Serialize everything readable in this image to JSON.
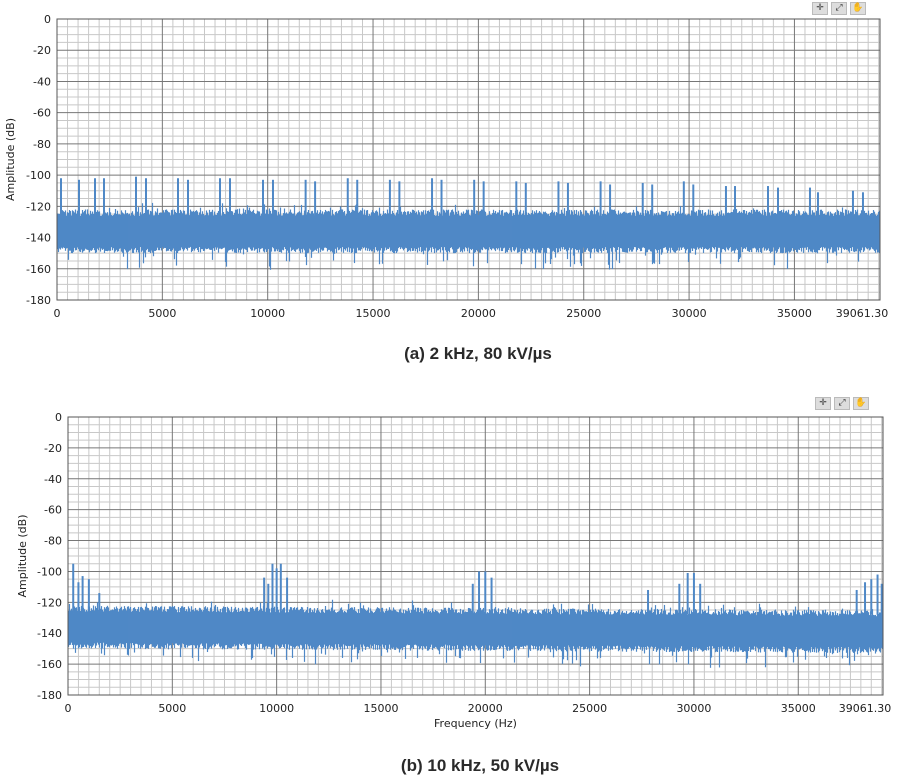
{
  "chart_data": [
    {
      "type": "line",
      "title": "",
      "caption": "(a) 2 kHz, 80 kV/µs",
      "xlabel": "",
      "ylabel": "Amplitude (dB)",
      "xlim": [
        0,
        39061.3
      ],
      "ylim": [
        -180,
        0
      ],
      "x_ticks": [
        "0",
        "5000",
        "10000",
        "15000",
        "20000",
        "25000",
        "30000",
        "35000",
        "39061.30"
      ],
      "y_ticks": [
        "0",
        "-20",
        "-40",
        "-60",
        "-80",
        "-100",
        "-120",
        "-140",
        "-160",
        "-180"
      ],
      "grid": true,
      "color": "#4f88c6",
      "noise_floor_db": [
        -150,
        -122
      ],
      "spikes": [
        [
          190,
          -102
        ],
        [
          1044,
          -103
        ],
        [
          1803,
          -102
        ],
        [
          2230,
          -102
        ],
        [
          3750,
          -101
        ],
        [
          4224,
          -102
        ],
        [
          5743,
          -102
        ],
        [
          6217,
          -103
        ],
        [
          7736,
          -102
        ],
        [
          8211,
          -102
        ],
        [
          9777,
          -103
        ],
        [
          10251,
          -103
        ],
        [
          11800,
          -103
        ],
        [
          12250,
          -104
        ],
        [
          13800,
          -102
        ],
        [
          14250,
          -103
        ],
        [
          15800,
          -103
        ],
        [
          16250,
          -104
        ],
        [
          17800,
          -102
        ],
        [
          18250,
          -103
        ],
        [
          19800,
          -103
        ],
        [
          20250,
          -104
        ],
        [
          21800,
          -104
        ],
        [
          22250,
          -105
        ],
        [
          23800,
          -104
        ],
        [
          24250,
          -105
        ],
        [
          25800,
          -104
        ],
        [
          26250,
          -106
        ],
        [
          27800,
          -105
        ],
        [
          28250,
          -106
        ],
        [
          29750,
          -104
        ],
        [
          30200,
          -106
        ],
        [
          31750,
          -107
        ],
        [
          32180,
          -107
        ],
        [
          33745,
          -107
        ],
        [
          34220,
          -108
        ],
        [
          35738,
          -108
        ],
        [
          36117,
          -111
        ],
        [
          37778,
          -110
        ],
        [
          38253,
          -111
        ]
      ]
    },
    {
      "type": "line",
      "title": "",
      "caption": "(b) 10 kHz, 50 kV/µs",
      "xlabel": "Frequency (Hz)",
      "ylabel": "Amplitude (dB)",
      "xlim": [
        0,
        39061.3
      ],
      "ylim": [
        -180,
        0
      ],
      "x_ticks": [
        "0",
        "5000",
        "10000",
        "15000",
        "20000",
        "25000",
        "30000",
        "35000",
        "39061.30"
      ],
      "y_ticks": [
        "0",
        "-20",
        "-40",
        "-60",
        "-80",
        "-100",
        "-120",
        "-140",
        "-160",
        "-180"
      ],
      "grid": true,
      "color": "#4f88c6",
      "noise_floor_db": [
        -150,
        -122
      ],
      "spikes": [
        [
          250,
          -95
        ],
        [
          500,
          -107
        ],
        [
          700,
          -103
        ],
        [
          1000,
          -105
        ],
        [
          1500,
          -114
        ],
        [
          9400,
          -104
        ],
        [
          9600,
          -108
        ],
        [
          9800,
          -95
        ],
        [
          10000,
          -98
        ],
        [
          10200,
          -95
        ],
        [
          10500,
          -104
        ],
        [
          19400,
          -108
        ],
        [
          19700,
          -100
        ],
        [
          20000,
          -100
        ],
        [
          20300,
          -104
        ],
        [
          27800,
          -112
        ],
        [
          29300,
          -108
        ],
        [
          29700,
          -101
        ],
        [
          30000,
          -101
        ],
        [
          30300,
          -108
        ],
        [
          37800,
          -112
        ],
        [
          38200,
          -107
        ],
        [
          38500,
          -105
        ],
        [
          38800,
          -102
        ],
        [
          39000,
          -108
        ]
      ]
    }
  ],
  "toolbar": {
    "icons": [
      "cursor-crosshair-icon",
      "zoom-icon",
      "pan-hand-icon"
    ],
    "glyphs": [
      "✛",
      "⤢",
      "✋"
    ]
  }
}
